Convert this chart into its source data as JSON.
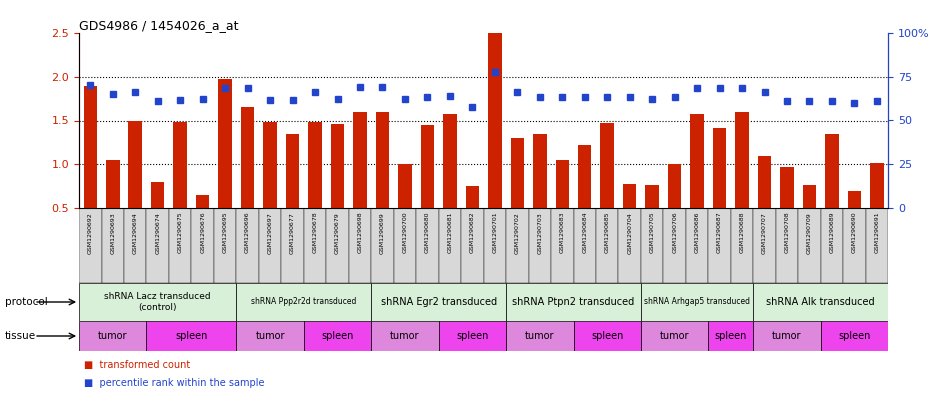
{
  "title": "GDS4986 / 1454026_a_at",
  "samples": [
    "GSM1290692",
    "GSM1290693",
    "GSM1290694",
    "GSM1290674",
    "GSM1290675",
    "GSM1290676",
    "GSM1290695",
    "GSM1290696",
    "GSM1290697",
    "GSM1290677",
    "GSM1290678",
    "GSM1290679",
    "GSM1290698",
    "GSM1290699",
    "GSM1290700",
    "GSM1290680",
    "GSM1290681",
    "GSM1290682",
    "GSM1290701",
    "GSM1290702",
    "GSM1290703",
    "GSM1290683",
    "GSM1290684",
    "GSM1290685",
    "GSM1290704",
    "GSM1290705",
    "GSM1290706",
    "GSM1290686",
    "GSM1290687",
    "GSM1290688",
    "GSM1290707",
    "GSM1290708",
    "GSM1290709",
    "GSM1290689",
    "GSM1290690",
    "GSM1290691"
  ],
  "red_values": [
    1.9,
    1.05,
    1.5,
    0.8,
    1.48,
    0.65,
    1.97,
    1.65,
    1.48,
    1.35,
    1.48,
    1.46,
    1.6,
    1.6,
    1.0,
    1.45,
    1.58,
    0.75,
    2.5,
    1.3,
    1.35,
    1.05,
    1.22,
    1.47,
    0.77,
    0.76,
    1.0,
    1.58,
    1.42,
    1.6,
    1.1,
    0.97,
    0.76,
    1.35,
    0.7,
    1.02
  ],
  "blue_values": [
    1.9,
    1.8,
    1.83,
    1.72,
    1.73,
    1.75,
    1.87,
    1.87,
    1.73,
    1.73,
    1.82,
    1.75,
    1.88,
    1.88,
    1.75,
    1.77,
    1.78,
    1.65,
    2.05,
    1.83,
    1.77,
    1.77,
    1.77,
    1.77,
    1.77,
    1.75,
    1.77,
    1.87,
    1.87,
    1.87,
    1.83,
    1.72,
    1.72,
    1.72,
    1.7,
    1.72
  ],
  "protocols": [
    {
      "label": "shRNA Lacz transduced\n(control)",
      "start": 0,
      "end": 7,
      "color": "#d8f0d8",
      "fontsize": 6.5
    },
    {
      "label": "shRNA Ppp2r2d transduced",
      "start": 7,
      "end": 13,
      "color": "#d8f0d8",
      "fontsize": 5.5
    },
    {
      "label": "shRNA Egr2 transduced",
      "start": 13,
      "end": 19,
      "color": "#d8f0d8",
      "fontsize": 7
    },
    {
      "label": "shRNA Ptpn2 transduced",
      "start": 19,
      "end": 25,
      "color": "#d8f0d8",
      "fontsize": 7
    },
    {
      "label": "shRNA Arhgap5 transduced",
      "start": 25,
      "end": 30,
      "color": "#d8f0d8",
      "fontsize": 5.5
    },
    {
      "label": "shRNA Alk transduced",
      "start": 30,
      "end": 36,
      "color": "#d8f0d8",
      "fontsize": 7
    }
  ],
  "tissues": [
    {
      "label": "tumor",
      "start": 0,
      "end": 3,
      "color": "#dd88dd"
    },
    {
      "label": "spleen",
      "start": 3,
      "end": 7,
      "color": "#ee44ee"
    },
    {
      "label": "tumor",
      "start": 7,
      "end": 10,
      "color": "#dd88dd"
    },
    {
      "label": "spleen",
      "start": 10,
      "end": 13,
      "color": "#ee44ee"
    },
    {
      "label": "tumor",
      "start": 13,
      "end": 16,
      "color": "#dd88dd"
    },
    {
      "label": "spleen",
      "start": 16,
      "end": 19,
      "color": "#ee44ee"
    },
    {
      "label": "tumor",
      "start": 19,
      "end": 22,
      "color": "#dd88dd"
    },
    {
      "label": "spleen",
      "start": 22,
      "end": 25,
      "color": "#ee44ee"
    },
    {
      "label": "tumor",
      "start": 25,
      "end": 28,
      "color": "#dd88dd"
    },
    {
      "label": "spleen",
      "start": 28,
      "end": 30,
      "color": "#ee44ee"
    },
    {
      "label": "tumor",
      "start": 30,
      "end": 33,
      "color": "#dd88dd"
    },
    {
      "label": "spleen",
      "start": 33,
      "end": 36,
      "color": "#ee44ee"
    }
  ],
  "ylim_left": [
    0.5,
    2.5
  ],
  "ylim_right": [
    0,
    100
  ],
  "yticks_left": [
    0.5,
    1.0,
    1.5,
    2.0,
    2.5
  ],
  "yticks_right": [
    0,
    25,
    50,
    75,
    100
  ],
  "ytick_labels_right": [
    "0",
    "25",
    "50",
    "75",
    "100%"
  ],
  "red_color": "#cc2200",
  "blue_color": "#2244cc",
  "bar_width": 0.6,
  "legend_red": "transformed count",
  "legend_blue": "percentile rank within the sample"
}
